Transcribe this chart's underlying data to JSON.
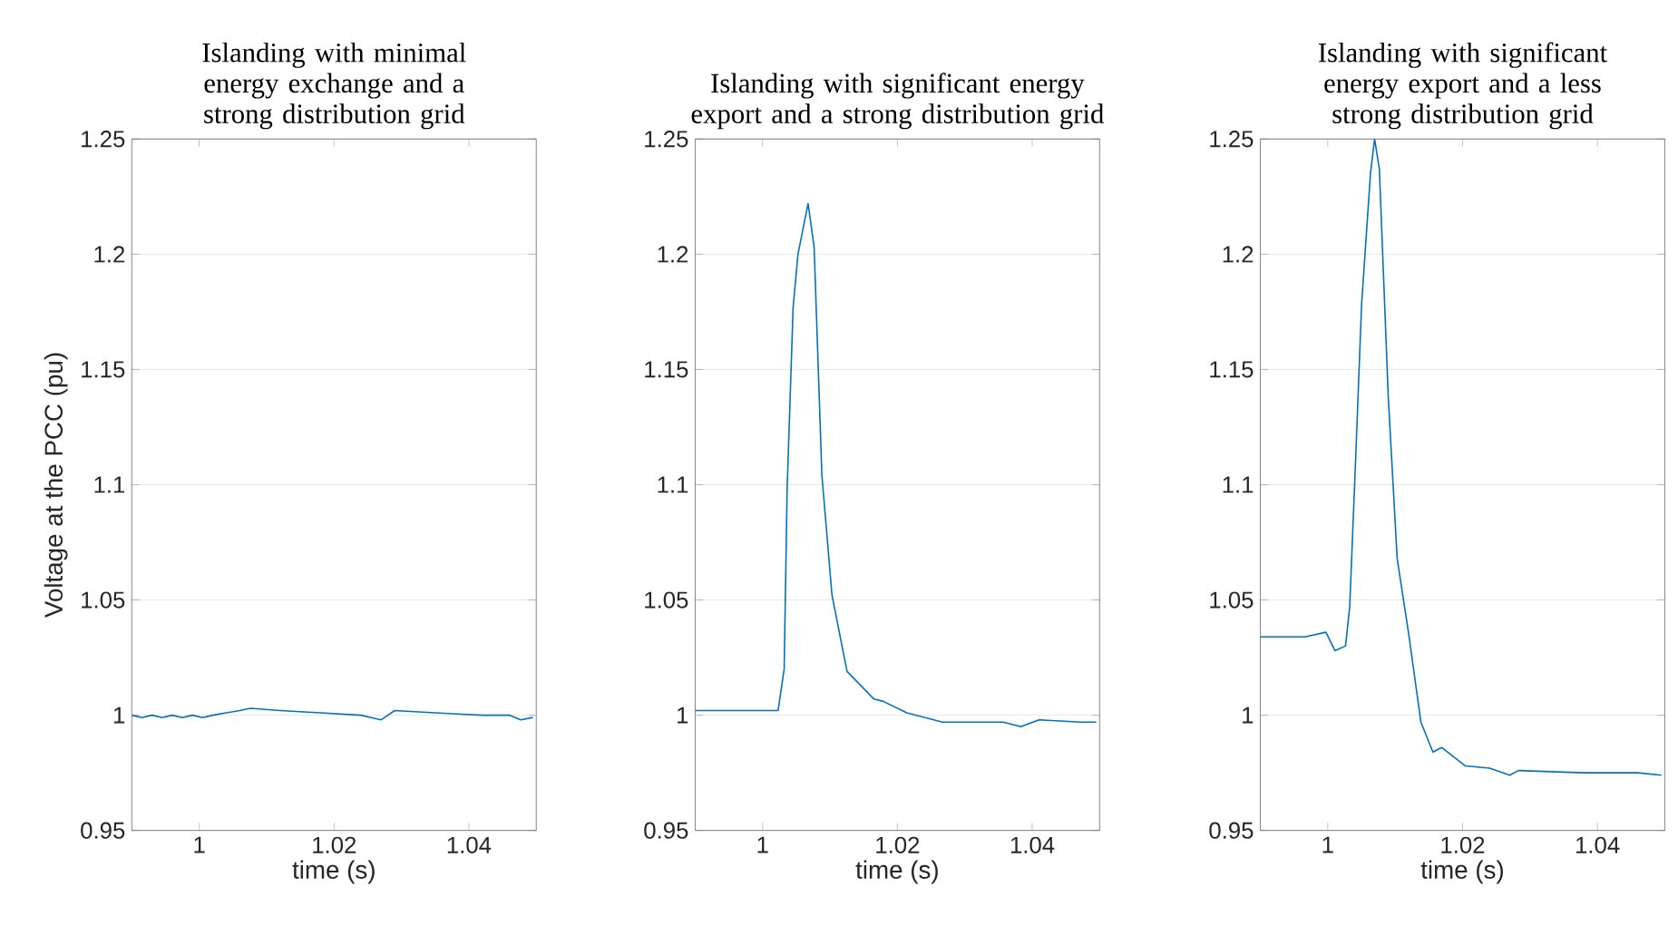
{
  "chart_data": [
    {
      "type": "line",
      "title": "Islanding with minimal energy exchange and a strong distribution grid",
      "xlabel": "time (s)",
      "ylabel": "Voltage at the PCC (pu)",
      "xlim": [
        0.99,
        1.05
      ],
      "ylim": [
        0.95,
        1.25
      ],
      "xticks": [
        1,
        1.02,
        1.04
      ],
      "yticks": [
        0.95,
        1,
        1.05,
        1.1,
        1.15,
        1.2,
        1.25
      ],
      "grid": "y",
      "series": [
        {
          "color": "#0072bd",
          "x": [
            0.99,
            0.9915,
            0.993,
            0.9945,
            0.996,
            0.9975,
            0.999,
            1.0005,
            1.002,
            1.004,
            1.006,
            1.0076,
            1.012,
            1.018,
            1.024,
            1.0255,
            1.027,
            1.029,
            1.035,
            1.042,
            1.046,
            1.0477,
            1.0495
          ],
          "values": [
            1.0,
            0.999,
            1.0,
            0.999,
            1.0,
            0.999,
            1.0,
            0.999,
            1.0,
            1.001,
            1.002,
            1.003,
            1.002,
            1.001,
            1.0,
            0.999,
            0.998,
            1.002,
            1.001,
            1.0,
            1.0,
            0.998,
            0.999
          ]
        }
      ]
    },
    {
      "type": "line",
      "title": "Islanding with significant energy export and a strong distribution grid",
      "xlabel": "time (s)",
      "xlim": [
        0.99,
        1.05
      ],
      "ylim": [
        0.95,
        1.25
      ],
      "xticks": [
        1,
        1.02,
        1.04
      ],
      "yticks": [
        0.95,
        1,
        1.05,
        1.1,
        1.15,
        1.2,
        1.25
      ],
      "grid": "y",
      "series": [
        {
          "color": "#0072bd",
          "x": [
            0.99,
            1.0023,
            1.0032,
            1.00365,
            1.00453,
            1.00525,
            1.00675,
            1.00765,
            1.0088,
            1.0103,
            1.01253,
            1.01653,
            1.0179,
            1.0214,
            1.0267,
            1.0357,
            1.0383,
            1.041,
            1.0472,
            1.0495
          ],
          "values": [
            1.002,
            1.002,
            1.02,
            1.099,
            1.177,
            1.2,
            1.222,
            1.203,
            1.104,
            1.052,
            1.019,
            1.007,
            1.006,
            1.001,
            0.997,
            0.997,
            0.995,
            0.998,
            0.997,
            0.997
          ]
        }
      ]
    },
    {
      "type": "line",
      "title": "Islanding with significant energy export and a less strong distribution grid",
      "xlabel": "time (s)",
      "xlim": [
        0.99,
        1.05
      ],
      "ylim": [
        0.95,
        1.25
      ],
      "xticks": [
        1,
        1.02,
        1.04
      ],
      "yticks": [
        0.95,
        1,
        1.05,
        1.1,
        1.15,
        1.2,
        1.25
      ],
      "grid": "y",
      "series": [
        {
          "color": "#0072bd",
          "x": [
            0.99,
            0.99313,
            0.99665,
            0.99974,
            1.00106,
            1.00264,
            1.00326,
            1.00415,
            1.00502,
            1.00634,
            1.00695,
            1.00766,
            1.00898,
            1.0103,
            1.01207,
            1.01382,
            1.0156,
            1.0169,
            1.02043,
            1.024,
            1.027,
            1.0283,
            1.038,
            1.046,
            1.0495
          ],
          "values": [
            1.034,
            1.034,
            1.034,
            1.036,
            1.028,
            1.03,
            1.047,
            1.112,
            1.178,
            1.235,
            1.25,
            1.237,
            1.138,
            1.068,
            1.034,
            0.997,
            0.984,
            0.986,
            0.978,
            0.977,
            0.974,
            0.976,
            0.975,
            0.975,
            0.974
          ]
        }
      ]
    }
  ]
}
